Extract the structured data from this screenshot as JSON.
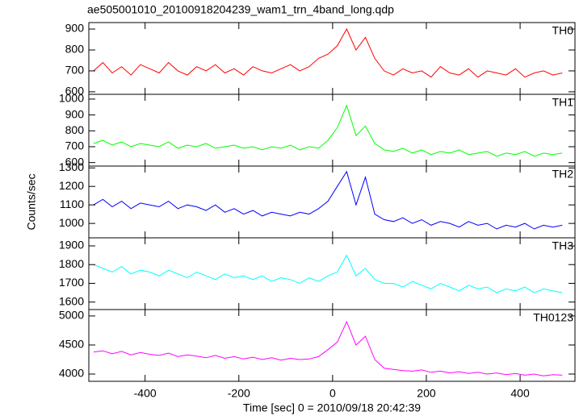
{
  "chart_data": [
    {
      "type": "line",
      "title": "ae505001010_20100918204239_wam1_trn_4band_long.qdp",
      "label": "TH0",
      "color": "#ff0000",
      "x": [
        -510,
        -490,
        -470,
        -450,
        -430,
        -410,
        -390,
        -370,
        -350,
        -330,
        -310,
        -290,
        -270,
        -250,
        -230,
        -210,
        -190,
        -170,
        -150,
        -130,
        -110,
        -90,
        -70,
        -50,
        -30,
        -10,
        10,
        30,
        50,
        70,
        90,
        110,
        130,
        150,
        170,
        190,
        210,
        230,
        250,
        270,
        290,
        310,
        330,
        350,
        370,
        390,
        410,
        430,
        450,
        470,
        490
      ],
      "values": [
        700,
        740,
        690,
        720,
        680,
        730,
        710,
        690,
        740,
        700,
        680,
        720,
        700,
        730,
        690,
        710,
        680,
        720,
        700,
        690,
        710,
        730,
        700,
        720,
        760,
        780,
        820,
        900,
        800,
        860,
        760,
        700,
        680,
        710,
        690,
        700,
        670,
        720,
        690,
        680,
        710,
        670,
        700,
        690,
        680,
        710,
        670,
        690,
        700,
        680,
        690
      ],
      "xlim": [
        -520,
        517
      ],
      "xticks": [
        -400,
        -200,
        0,
        200,
        400
      ],
      "ylim": [
        588,
        931
      ],
      "yticks": [
        600,
        700,
        800,
        900
      ]
    },
    {
      "type": "line",
      "label": "TH1",
      "color": "#00ff00",
      "x": [
        -510,
        -490,
        -470,
        -450,
        -430,
        -410,
        -390,
        -370,
        -350,
        -330,
        -310,
        -290,
        -270,
        -250,
        -230,
        -210,
        -190,
        -170,
        -150,
        -130,
        -110,
        -90,
        -70,
        -50,
        -30,
        -10,
        10,
        30,
        50,
        70,
        90,
        110,
        130,
        150,
        170,
        190,
        210,
        230,
        250,
        270,
        290,
        310,
        330,
        350,
        370,
        390,
        410,
        430,
        450,
        470,
        490
      ],
      "values": [
        720,
        740,
        710,
        730,
        700,
        720,
        710,
        700,
        730,
        690,
        710,
        700,
        720,
        690,
        700,
        710,
        690,
        700,
        680,
        700,
        690,
        710,
        680,
        700,
        690,
        740,
        820,
        960,
        770,
        830,
        720,
        680,
        670,
        690,
        660,
        680,
        650,
        670,
        660,
        680,
        650,
        660,
        670,
        640,
        660,
        650,
        670,
        640,
        660,
        650,
        660
      ],
      "xlim": [
        -520,
        517
      ],
      "xticks": [
        -400,
        -200,
        0,
        200,
        400
      ],
      "ylim": [
        578,
        1030
      ],
      "yticks": [
        600,
        700,
        800,
        900,
        1000
      ]
    },
    {
      "type": "line",
      "label": "TH2",
      "ylabel": "Counts/sec",
      "color": "#0000ff",
      "x": [
        -510,
        -490,
        -470,
        -450,
        -430,
        -410,
        -390,
        -370,
        -350,
        -330,
        -310,
        -290,
        -270,
        -250,
        -230,
        -210,
        -190,
        -170,
        -150,
        -130,
        -110,
        -90,
        -70,
        -50,
        -30,
        -10,
        10,
        30,
        50,
        70,
        90,
        110,
        130,
        150,
        170,
        190,
        210,
        230,
        250,
        270,
        290,
        310,
        330,
        350,
        370,
        390,
        410,
        430,
        450,
        470,
        490
      ],
      "values": [
        1100,
        1130,
        1090,
        1120,
        1080,
        1110,
        1100,
        1090,
        1120,
        1080,
        1100,
        1090,
        1070,
        1100,
        1060,
        1080,
        1050,
        1070,
        1040,
        1060,
        1050,
        1040,
        1060,
        1050,
        1080,
        1120,
        1200,
        1280,
        1100,
        1250,
        1050,
        1020,
        1010,
        1030,
        1000,
        1020,
        990,
        1010,
        1000,
        980,
        1010,
        990,
        1000,
        970,
        990,
        980,
        1000,
        970,
        990,
        980,
        990
      ],
      "xlim": [
        -520,
        517
      ],
      "xticks": [
        -400,
        -200,
        0,
        200,
        400
      ],
      "ylim": [
        922,
        1310
      ],
      "yticks": [
        1000,
        1100,
        1200,
        1300
      ]
    },
    {
      "type": "line",
      "label": "TH3",
      "color": "#00ffff",
      "x": [
        -510,
        -490,
        -470,
        -450,
        -430,
        -410,
        -390,
        -370,
        -350,
        -330,
        -310,
        -290,
        -270,
        -250,
        -230,
        -210,
        -190,
        -170,
        -150,
        -130,
        -110,
        -90,
        -70,
        -50,
        -30,
        -10,
        10,
        30,
        50,
        70,
        90,
        110,
        130,
        150,
        170,
        190,
        210,
        230,
        250,
        270,
        290,
        310,
        330,
        350,
        370,
        390,
        410,
        430,
        450,
        470,
        490
      ],
      "values": [
        1800,
        1780,
        1760,
        1790,
        1750,
        1770,
        1760,
        1740,
        1770,
        1750,
        1730,
        1760,
        1740,
        1720,
        1750,
        1730,
        1740,
        1720,
        1740,
        1710,
        1730,
        1720,
        1700,
        1730,
        1710,
        1740,
        1760,
        1850,
        1740,
        1780,
        1720,
        1700,
        1700,
        1680,
        1710,
        1690,
        1670,
        1700,
        1680,
        1660,
        1690,
        1670,
        1680,
        1650,
        1670,
        1660,
        1680,
        1650,
        1670,
        1660,
        1650
      ],
      "xlim": [
        -520,
        517
      ],
      "xticks": [
        -400,
        -200,
        0,
        200,
        400
      ],
      "ylim": [
        1560,
        1943
      ],
      "yticks": [
        1600,
        1700,
        1800,
        1900
      ]
    },
    {
      "type": "line",
      "label": "TH0123",
      "xlabel": "Time [sec] 0 = 2010/09/18 20:42:39",
      "color": "#ff00ff",
      "x": [
        -510,
        -490,
        -470,
        -450,
        -430,
        -410,
        -390,
        -370,
        -350,
        -330,
        -310,
        -290,
        -270,
        -250,
        -230,
        -210,
        -190,
        -170,
        -150,
        -130,
        -110,
        -90,
        -70,
        -50,
        -30,
        -10,
        10,
        30,
        50,
        70,
        90,
        110,
        130,
        150,
        170,
        190,
        210,
        230,
        250,
        270,
        290,
        310,
        330,
        350,
        370,
        390,
        410,
        430,
        450,
        470,
        490
      ],
      "values": [
        4380,
        4400,
        4350,
        4390,
        4330,
        4370,
        4340,
        4320,
        4360,
        4300,
        4330,
        4310,
        4280,
        4320,
        4270,
        4300,
        4260,
        4290,
        4250,
        4280,
        4240,
        4270,
        4250,
        4260,
        4300,
        4420,
        4550,
        4900,
        4500,
        4650,
        4250,
        4100,
        4080,
        4060,
        4050,
        4070,
        4030,
        4050,
        4020,
        4040,
        4010,
        4030,
        4000,
        4020,
        3990,
        4010,
        3980,
        4000,
        3970,
        3990,
        3980
      ],
      "xlim": [
        -520,
        517
      ],
      "xticks": [
        -400,
        -200,
        0,
        200,
        400
      ],
      "ylim": [
        3875,
        5110
      ],
      "yticks": [
        4000,
        4500,
        5000
      ]
    }
  ]
}
